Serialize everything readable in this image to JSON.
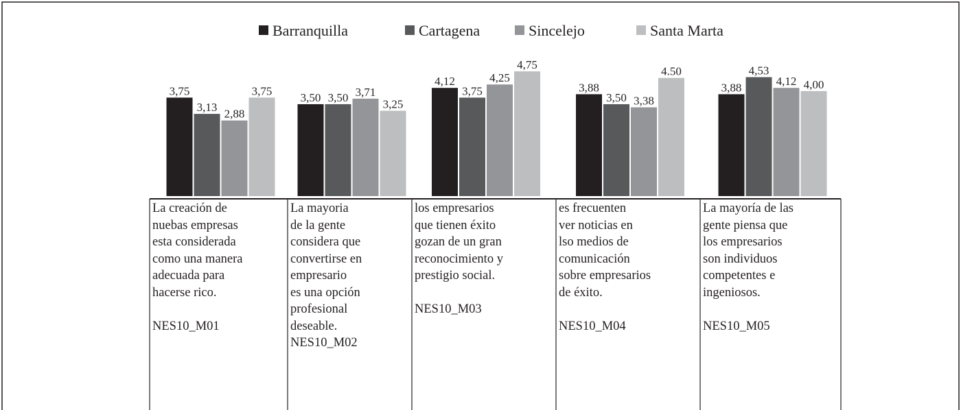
{
  "chart_data": {
    "type": "bar",
    "categories": [
      "La creación de\nnuebas empresas\nesta considerada\ncomo una manera\nadecuada para\nhacerse rico.\n\nNES10_M01",
      "La mayoria\nde la gente\nconsidera que\nconvertirse en\nempresario\nes una opción\nprofesional\ndeseable.\nNES10_M02",
      "los empresarios\nque tienen éxito\ngozan de un gran\nreconocimiento y\nprestigio social.\n\nNES10_M03",
      "es frecuenten\nver noticias en\nlso medios de\ncomunicación\nsobre empresarios\nde éxito.\n\nNES10_M04",
      "La mayoría de las\ngente piensa que\nlos empresarios\nson individuos\ncompetentes e\ningeniosos.\n\nNES10_M05"
    ],
    "series": [
      {
        "name": "Barranquilla",
        "color": "#231f20",
        "values": [
          3.75,
          3.5,
          4.12,
          3.88,
          3.88
        ],
        "value_labels": [
          "3,75",
          "3,50",
          "4,12",
          "3,88",
          "3,88"
        ]
      },
      {
        "name": "Cartagena",
        "color": "#58595b",
        "values": [
          3.13,
          3.5,
          3.75,
          3.5,
          4.53
        ],
        "value_labels": [
          "3,13",
          "3,50",
          "3,75",
          "3,50",
          "4,53"
        ]
      },
      {
        "name": "Sincelejo",
        "color": "#939598",
        "values": [
          2.88,
          3.71,
          4.25,
          3.38,
          4.12
        ],
        "value_labels": [
          "2,88",
          "3,71",
          "4,25",
          "3,38",
          "4,12"
        ]
      },
      {
        "name": "Santa Marta",
        "color": "#bcbec0",
        "values": [
          3.75,
          3.25,
          4.75,
          4.5,
          4.0
        ],
        "value_labels": [
          "3,75",
          "3,25",
          "4,75",
          "4.50",
          "4,00"
        ]
      }
    ],
    "legend": "top"
  }
}
